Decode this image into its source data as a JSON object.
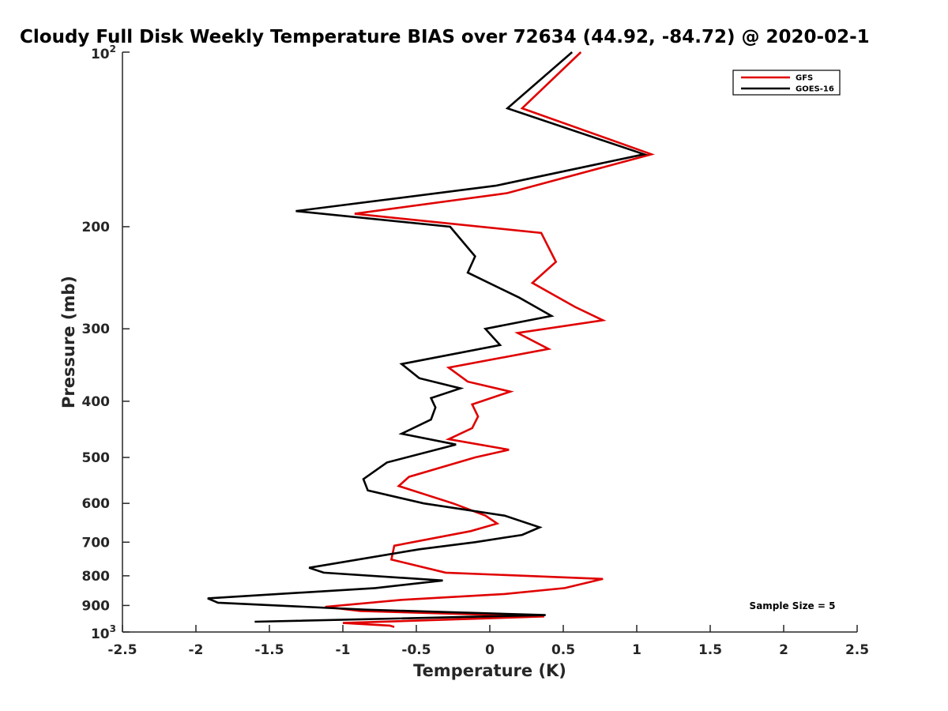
{
  "chart_data": {
    "type": "line",
    "orientation": "vertical-profile",
    "title": "Cloudy Full Disk Weekly Temperature BIAS over 72634 (44.92, -84.72) @ 2020-02-1",
    "xlabel": "Temperature (K)",
    "ylabel": "Pressure (mb)",
    "xlim": [
      -2.5,
      2.5
    ],
    "ylim": [
      100,
      1000
    ],
    "y_scale": "log",
    "y_reversed": true,
    "grid": false,
    "legend_position": "top-right",
    "x_ticks": [
      {
        "value": -2.5,
        "label": "-2.5"
      },
      {
        "value": -2,
        "label": "-2"
      },
      {
        "value": -1.5,
        "label": "-1.5"
      },
      {
        "value": -1,
        "label": "-1"
      },
      {
        "value": -0.5,
        "label": "-0.5"
      },
      {
        "value": 0,
        "label": "0"
      },
      {
        "value": 0.5,
        "label": "0.5"
      },
      {
        "value": 1,
        "label": "1"
      },
      {
        "value": 1.5,
        "label": "1.5"
      },
      {
        "value": 2,
        "label": "2"
      },
      {
        "value": 2.5,
        "label": "2.5"
      }
    ],
    "y_ticks": [
      {
        "value": 100,
        "label": "",
        "base": "10",
        "exp": "2"
      },
      {
        "value": 200,
        "label": "200"
      },
      {
        "value": 300,
        "label": "300"
      },
      {
        "value": 400,
        "label": "400"
      },
      {
        "value": 500,
        "label": "500"
      },
      {
        "value": 600,
        "label": "600"
      },
      {
        "value": 700,
        "label": "700"
      },
      {
        "value": 800,
        "label": "800"
      },
      {
        "value": 900,
        "label": "900"
      },
      {
        "value": 1000,
        "label": "",
        "base": "10",
        "exp": "3"
      }
    ],
    "series": [
      {
        "name": "GFS",
        "color": "#e00000",
        "points": [
          [
            0.62,
            100
          ],
          [
            0.22,
            125
          ],
          [
            1.1,
            150
          ],
          [
            0.12,
            175
          ],
          [
            -0.92,
            190
          ],
          [
            0.35,
            205
          ],
          [
            0.45,
            230
          ],
          [
            0.29,
            250
          ],
          [
            0.58,
            275
          ],
          [
            0.77,
            290
          ],
          [
            0.19,
            305
          ],
          [
            0.4,
            325
          ],
          [
            -0.28,
            350
          ],
          [
            -0.15,
            370
          ],
          [
            0.14,
            385
          ],
          [
            -0.12,
            405
          ],
          [
            -0.08,
            425
          ],
          [
            -0.12,
            445
          ],
          [
            -0.28,
            465
          ],
          [
            0.13,
            485
          ],
          [
            -0.1,
            500
          ],
          [
            -0.55,
            540
          ],
          [
            -0.62,
            560
          ],
          [
            -0.25,
            600
          ],
          [
            -0.03,
            630
          ],
          [
            0.05,
            650
          ],
          [
            -0.13,
            670
          ],
          [
            -0.65,
            710
          ],
          [
            -0.67,
            750
          ],
          [
            -0.3,
            790
          ],
          [
            0.77,
            810
          ],
          [
            0.51,
            840
          ],
          [
            0.1,
            860
          ],
          [
            -0.6,
            880
          ],
          [
            -1.12,
            905
          ],
          [
            -0.88,
            920
          ],
          [
            0.37,
            940
          ],
          [
            -1.0,
            965
          ],
          [
            -0.68,
            975
          ],
          [
            -0.65,
            980
          ]
        ]
      },
      {
        "name": "GOES-16",
        "color": "#000000",
        "points": [
          [
            0.56,
            100
          ],
          [
            0.12,
            125
          ],
          [
            1.05,
            150
          ],
          [
            0.04,
            170
          ],
          [
            -1.32,
            188
          ],
          [
            -0.27,
            200
          ],
          [
            -0.1,
            225
          ],
          [
            -0.15,
            240
          ],
          [
            0.2,
            265
          ],
          [
            0.42,
            285
          ],
          [
            -0.03,
            300
          ],
          [
            0.07,
            320
          ],
          [
            -0.6,
            345
          ],
          [
            -0.48,
            365
          ],
          [
            -0.2,
            380
          ],
          [
            -0.4,
            395
          ],
          [
            -0.37,
            410
          ],
          [
            -0.4,
            430
          ],
          [
            -0.6,
            455
          ],
          [
            -0.23,
            475
          ],
          [
            -0.7,
            510
          ],
          [
            -0.86,
            545
          ],
          [
            -0.83,
            570
          ],
          [
            -0.45,
            600
          ],
          [
            0.1,
            630
          ],
          [
            0.34,
            660
          ],
          [
            0.22,
            680
          ],
          [
            -0.1,
            700
          ],
          [
            -0.48,
            720
          ],
          [
            -1.23,
            775
          ],
          [
            -1.13,
            790
          ],
          [
            -0.32,
            815
          ],
          [
            -0.78,
            840
          ],
          [
            -1.92,
            875
          ],
          [
            -1.85,
            890
          ],
          [
            -0.85,
            915
          ],
          [
            0.38,
            935
          ],
          [
            -1.6,
            960
          ]
        ]
      }
    ],
    "legend": [
      {
        "name": "GFS",
        "color": "#e00000"
      },
      {
        "name": "GOES-16",
        "color": "#000000"
      }
    ],
    "annotation": "Sample Size = 5"
  }
}
